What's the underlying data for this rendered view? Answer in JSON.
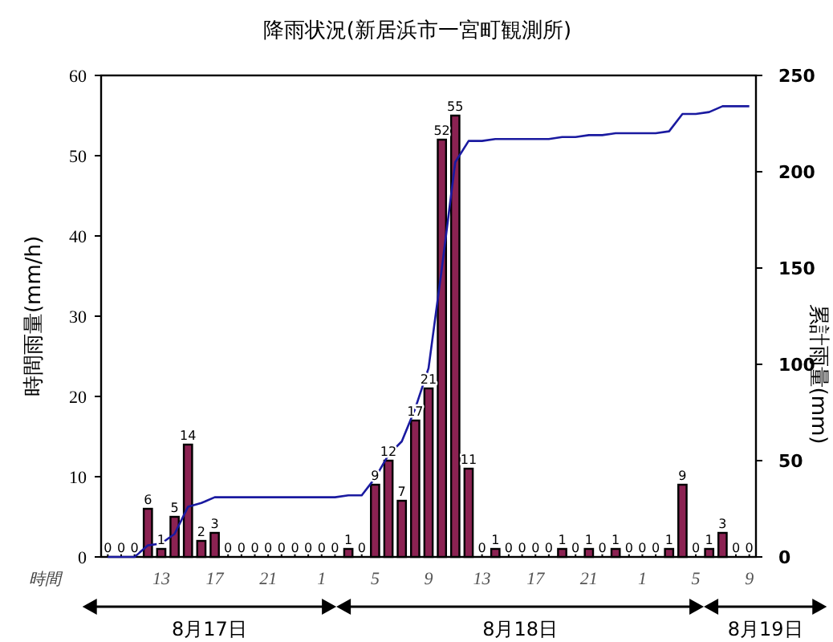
{
  "chart_data": {
    "type": "bar",
    "title": "降雨状況(新居浜市一宮町観測所)",
    "xlabel": "時間",
    "ylabel": "時間雨量(mm/h)",
    "y2label": "累計雨量(mm)",
    "categories": [
      null,
      null,
      null,
      null,
      "13",
      null,
      null,
      null,
      "17",
      null,
      null,
      null,
      "21",
      null,
      null,
      null,
      "1",
      null,
      null,
      null,
      "5",
      null,
      null,
      null,
      "9",
      null,
      null,
      null,
      "13",
      null,
      null,
      null,
      "17",
      null,
      null,
      null,
      "21",
      null,
      null,
      null,
      "1",
      null,
      null,
      null,
      "5",
      null,
      null,
      null,
      "9"
    ],
    "series": [
      {
        "color": "#8b2252",
        "values": [
          0,
          0,
          0,
          6,
          1,
          5,
          14,
          2,
          3,
          0,
          0,
          0,
          0,
          0,
          0,
          0,
          0,
          0,
          1,
          0,
          9,
          12,
          7,
          17,
          21,
          52,
          55,
          11,
          0,
          1,
          0,
          0,
          0,
          0,
          1,
          0,
          1,
          0,
          1,
          0,
          0,
          0,
          1,
          9,
          0,
          1,
          3,
          0,
          0
        ],
        "value_labels": [
          "0",
          "0",
          "0",
          "6",
          "1",
          "5",
          "14",
          "2",
          "3",
          "0",
          "0",
          "0",
          "0",
          "0",
          "0",
          "0",
          "0",
          "0",
          "1",
          "0",
          "9",
          "12",
          "7",
          "17",
          "21",
          "52",
          "55",
          "11",
          "0",
          "1",
          "0",
          "0",
          "0",
          "0",
          "1",
          "0",
          "1",
          "0",
          "1",
          "0",
          "0",
          "0",
          "1",
          "9",
          "0",
          "1",
          "3",
          "0",
          "0"
        ]
      },
      {
        "type": "line",
        "axis": "y2",
        "color": "#1a1aa0",
        "values": [
          0,
          0,
          0,
          6,
          7,
          12,
          26,
          28,
          31,
          31,
          31,
          31,
          31,
          31,
          31,
          31,
          31,
          31,
          32,
          32,
          41,
          53,
          60,
          77,
          98,
          150,
          205,
          216,
          216,
          217,
          217,
          217,
          217,
          217,
          218,
          218,
          219,
          219,
          220,
          220,
          220,
          220,
          221,
          230,
          230,
          231,
          234,
          234,
          234
        ]
      }
    ],
    "ylim": [
      0,
      60
    ],
    "yticks": [
      0,
      10,
      20,
      30,
      40,
      50,
      60
    ],
    "y2lim": [
      0,
      250
    ],
    "y2ticks": [
      0,
      50,
      100,
      150,
      200,
      250
    ],
    "grid": false,
    "annotations": [
      "8月17日",
      "8月18日",
      "8月19日"
    ]
  }
}
